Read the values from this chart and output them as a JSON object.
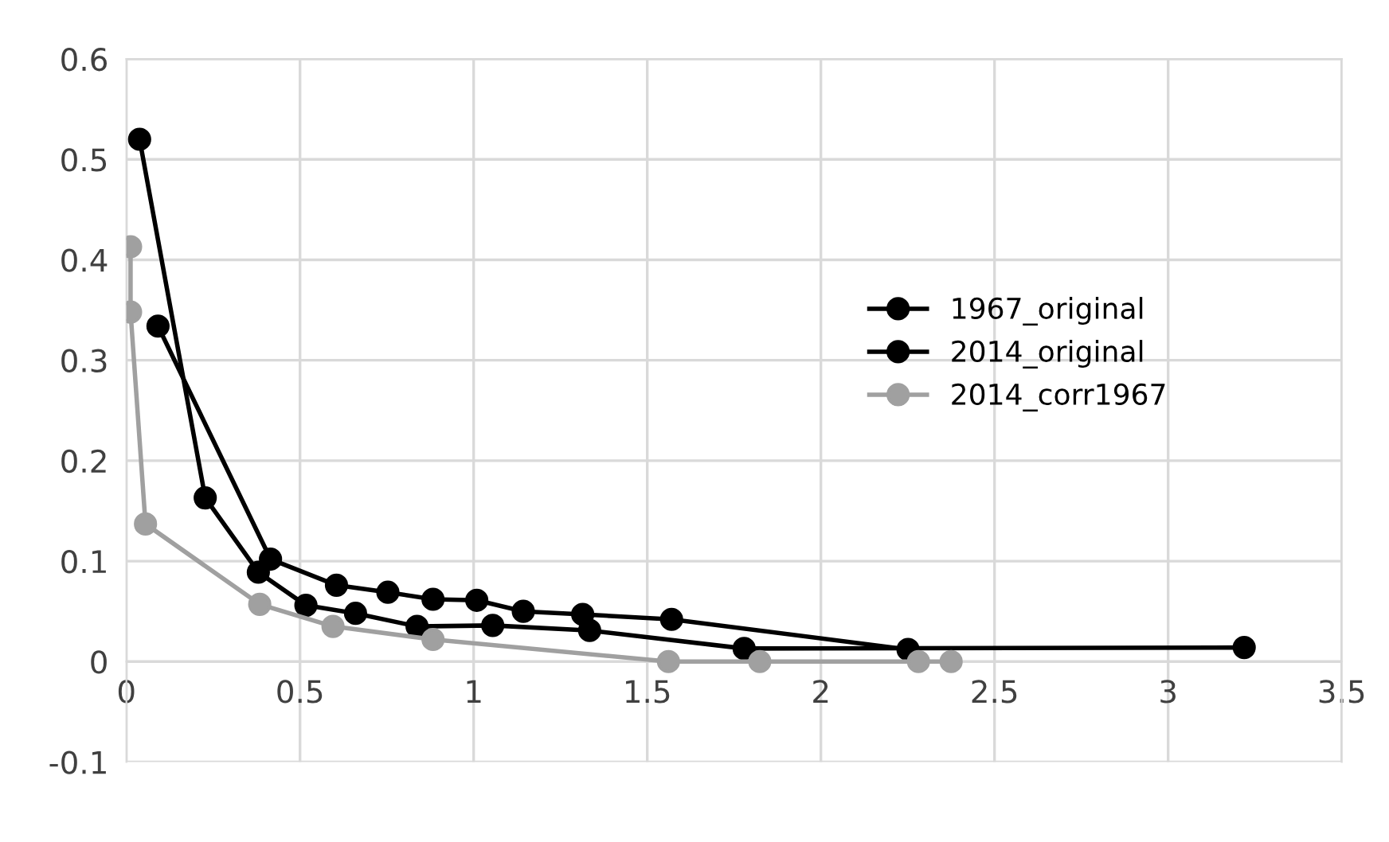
{
  "chart_data": {
    "type": "line",
    "xlim": [
      0,
      3.5
    ],
    "xticks": [
      0,
      0.5,
      1,
      1.5,
      2,
      2.5,
      3,
      3.5
    ],
    "ylim": [
      -0.1,
      0.6
    ],
    "yticks": [
      -0.1,
      0,
      0.1,
      0.2,
      0.3,
      0.4,
      0.5,
      0.6
    ],
    "grid": true,
    "legend": "right",
    "marker": "circle",
    "line_style": "solid",
    "series": [
      {
        "name": "1967_original",
        "color": "#000000",
        "x": [
          0.091,
          0.415,
          0.605,
          0.753,
          0.883,
          1.009,
          1.143,
          1.314,
          1.57,
          2.251
        ],
        "values": [
          0.334,
          0.102,
          0.076,
          0.069,
          0.062,
          0.061,
          0.05,
          0.047,
          0.042,
          0.012
        ]
      },
      {
        "name": "2014_original",
        "color": "#000000",
        "x": [
          0.038,
          0.227,
          0.38,
          0.517,
          0.66,
          0.837,
          1.055,
          1.334,
          1.779,
          3.219
        ],
        "values": [
          0.52,
          0.163,
          0.089,
          0.056,
          0.048,
          0.035,
          0.036,
          0.031,
          0.013,
          0.014
        ]
      },
      {
        "name": "2014_corr1967",
        "color": "#a0a0a0",
        "x": [
          0.012,
          0.012,
          0.055,
          0.384,
          0.595,
          0.883,
          1.561,
          1.824,
          2.281,
          2.375
        ],
        "values": [
          0.413,
          0.348,
          0.137,
          0.057,
          0.035,
          0.022,
          0.0,
          0.0,
          0.0,
          0.0
        ]
      }
    ]
  }
}
